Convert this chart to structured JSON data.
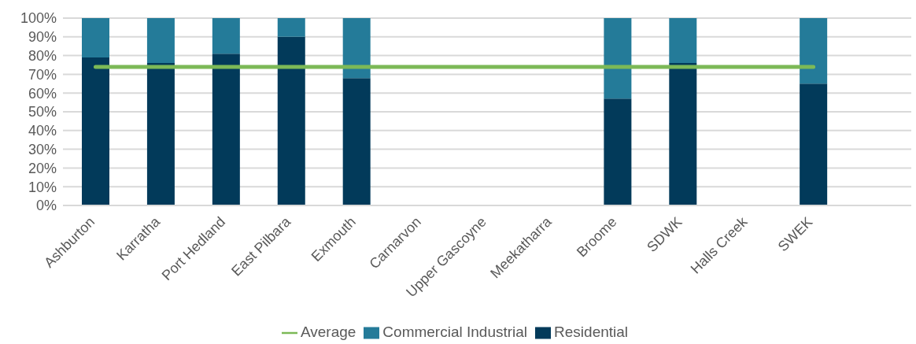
{
  "chart_data": {
    "type": "bar",
    "stacked": true,
    "categories": [
      "Ashburton",
      "Karratha",
      "Port Hedland",
      "East Pilbara",
      "Exmouth",
      "Carnarvon",
      "Upper Gascoyne",
      "Meekatharra",
      "Broome",
      "SDWK",
      "Halls Creek",
      "SWEK",
      null
    ],
    "series": [
      {
        "name": "Residential",
        "color": "#023a5a",
        "values": [
          79,
          76,
          81,
          90,
          68,
          null,
          null,
          null,
          57,
          76,
          null,
          65,
          null
        ]
      },
      {
        "name": "Commercial Industrial",
        "color": "#247b99",
        "values": [
          21,
          24,
          19,
          10,
          32,
          null,
          null,
          null,
          43,
          24,
          null,
          35,
          null
        ]
      },
      {
        "name": "Average",
        "type": "line",
        "color": "#7cb957",
        "values": [
          74,
          74,
          74,
          74,
          74,
          74,
          74,
          74,
          74,
          74,
          74,
          74,
          null
        ]
      }
    ],
    "ylim": [
      0,
      100
    ],
    "yticks": [
      {
        "value": 0,
        "label": "0%"
      },
      {
        "value": 10,
        "label": "10%"
      },
      {
        "value": 20,
        "label": "20%"
      },
      {
        "value": 30,
        "label": "30%"
      },
      {
        "value": 40,
        "label": "40%"
      },
      {
        "value": 50,
        "label": "50%"
      },
      {
        "value": 60,
        "label": "60%"
      },
      {
        "value": 70,
        "label": "70%"
      },
      {
        "value": 80,
        "label": "80%"
      },
      {
        "value": 90,
        "label": "90%"
      },
      {
        "value": 100,
        "label": "100%"
      }
    ],
    "grid": "y",
    "legend": "bottom",
    "marker": "none",
    "line_style": "solid"
  }
}
